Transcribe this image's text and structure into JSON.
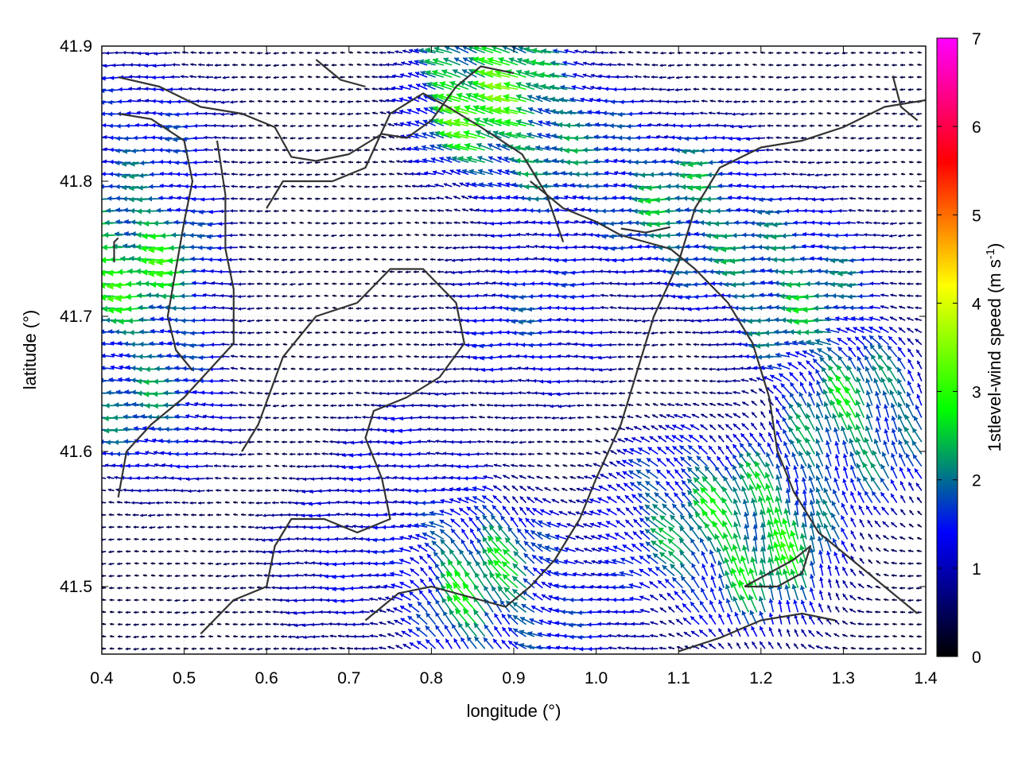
{
  "chart_data": {
    "type": "vector-field",
    "xlabel": "longitude (°)",
    "ylabel": "latitude (°)",
    "xlim": [
      0.4,
      1.4
    ],
    "ylim": [
      41.45,
      41.9
    ],
    "xticks": [
      "0.4",
      "0.5",
      "0.6",
      "0.7",
      "0.8",
      "0.9",
      "1.0",
      "1.1",
      "1.2",
      "1.3",
      "1.4"
    ],
    "yticks": [
      "41.5",
      "41.6",
      "41.7",
      "41.8",
      "41.9"
    ],
    "grid": true,
    "colorbar": {
      "label_main": "1stlevel-wind speed (m s",
      "label_sup": "-1",
      "label_end": ")",
      "range": [
        0,
        7
      ],
      "ticks": [
        "0",
        "1",
        "2",
        "3",
        "4",
        "5",
        "6",
        "7"
      ],
      "palette": [
        "#000000",
        "#0000ff",
        "#00ff00",
        "#ffff00",
        "#ff0000",
        "#ff00ff"
      ]
    },
    "vector_grid": {
      "dlon": 0.01,
      "dlat": 0.009
    },
    "wind_zones": [
      {
        "lon": 0.45,
        "lat": 41.74,
        "speed": 3.2,
        "dir_deg": 180
      },
      {
        "lon": 0.46,
        "lat": 41.64,
        "speed": 2.3,
        "dir_deg": 175
      },
      {
        "lon": 0.45,
        "lat": 41.83,
        "speed": 1.9,
        "dir_deg": 180
      },
      {
        "lon": 0.88,
        "lat": 41.86,
        "speed": 3.5,
        "dir_deg": 160
      },
      {
        "lon": 0.98,
        "lat": 41.82,
        "speed": 2.2,
        "dir_deg": 175
      },
      {
        "lon": 1.12,
        "lat": 41.78,
        "speed": 2.6,
        "dir_deg": 180
      },
      {
        "lon": 1.25,
        "lat": 41.72,
        "speed": 2.6,
        "dir_deg": 180
      },
      {
        "lon": 1.32,
        "lat": 41.62,
        "speed": 2.7,
        "dir_deg": 110
      },
      {
        "lon": 1.2,
        "lat": 41.53,
        "speed": 3.1,
        "dir_deg": 100
      },
      {
        "lon": 1.11,
        "lat": 41.55,
        "speed": 2.3,
        "dir_deg": 140
      },
      {
        "lon": 0.87,
        "lat": 41.5,
        "speed": 2.9,
        "dir_deg": 120
      },
      {
        "lon": 0.93,
        "lat": 41.7,
        "speed": 1.8,
        "dir_deg": 180
      },
      {
        "lon": 0.78,
        "lat": 41.58,
        "speed": 1.5,
        "dir_deg": 180
      },
      {
        "lon": 0.7,
        "lat": 41.52,
        "speed": 1.4,
        "dir_deg": 180
      },
      {
        "lon": 0.97,
        "lat": 41.48,
        "speed": 1.6,
        "dir_deg": 180
      }
    ],
    "contours": [
      [
        [
          0.42,
          41.877
        ],
        [
          0.47,
          41.87
        ],
        [
          0.52,
          41.855
        ],
        [
          0.57,
          41.85
        ],
        [
          0.61,
          41.84
        ],
        [
          0.63,
          41.818
        ],
        [
          0.66,
          41.815
        ],
        [
          0.7,
          41.82
        ],
        [
          0.74,
          41.835
        ],
        [
          0.77,
          41.832
        ],
        [
          0.8,
          41.845
        ],
        [
          0.83,
          41.87
        ],
        [
          0.86,
          41.885
        ],
        [
          0.9,
          41.88
        ]
      ],
      [
        [
          0.42,
          41.85
        ],
        [
          0.46,
          41.846
        ],
        [
          0.5,
          41.83
        ],
        [
          0.51,
          41.8
        ],
        [
          0.5,
          41.77
        ],
        [
          0.49,
          41.735
        ],
        [
          0.48,
          41.7
        ],
        [
          0.49,
          41.675
        ],
        [
          0.51,
          41.66
        ]
      ],
      [
        [
          0.415,
          41.74
        ],
        [
          0.415,
          41.755
        ],
        [
          0.42,
          41.758
        ]
      ],
      [
        [
          0.54,
          41.83
        ],
        [
          0.55,
          41.79
        ],
        [
          0.55,
          41.75
        ],
        [
          0.56,
          41.72
        ],
        [
          0.56,
          41.68
        ],
        [
          0.53,
          41.66
        ],
        [
          0.5,
          41.64
        ],
        [
          0.46,
          41.62
        ],
        [
          0.43,
          41.6
        ],
        [
          0.42,
          41.566
        ]
      ],
      [
        [
          0.52,
          41.465
        ],
        [
          0.56,
          41.49
        ],
        [
          0.6,
          41.5
        ],
        [
          0.61,
          41.53
        ],
        [
          0.63,
          41.55
        ],
        [
          0.67,
          41.55
        ],
        [
          0.71,
          41.54
        ],
        [
          0.75,
          41.55
        ],
        [
          0.74,
          41.58
        ],
        [
          0.72,
          41.61
        ],
        [
          0.73,
          41.63
        ],
        [
          0.77,
          41.64
        ],
        [
          0.81,
          41.655
        ],
        [
          0.84,
          41.68
        ],
        [
          0.83,
          41.71
        ],
        [
          0.79,
          41.735
        ],
        [
          0.75,
          41.735
        ],
        [
          0.71,
          41.71
        ],
        [
          0.66,
          41.7
        ],
        [
          0.62,
          41.67
        ],
        [
          0.59,
          41.62
        ],
        [
          0.57,
          41.6
        ]
      ],
      [
        [
          0.6,
          41.78
        ],
        [
          0.62,
          41.8
        ],
        [
          0.68,
          41.8
        ],
        [
          0.72,
          41.81
        ],
        [
          0.75,
          41.85
        ],
        [
          0.79,
          41.865
        ],
        [
          0.82,
          41.855
        ],
        [
          0.86,
          41.84
        ],
        [
          0.91,
          41.82
        ],
        [
          0.94,
          41.79
        ],
        [
          0.96,
          41.755
        ]
      ],
      [
        [
          0.72,
          41.475
        ],
        [
          0.76,
          41.495
        ],
        [
          0.8,
          41.5
        ],
        [
          0.83,
          41.495
        ],
        [
          0.86,
          41.49
        ],
        [
          0.89,
          41.485
        ],
        [
          0.92,
          41.5
        ],
        [
          0.95,
          41.52
        ],
        [
          0.98,
          41.55
        ],
        [
          1.0,
          41.58
        ],
        [
          1.03,
          41.62
        ],
        [
          1.05,
          41.66
        ],
        [
          1.07,
          41.7
        ],
        [
          1.1,
          41.74
        ],
        [
          1.12,
          41.78
        ],
        [
          1.15,
          41.81
        ],
        [
          1.2,
          41.825
        ],
        [
          1.25,
          41.83
        ],
        [
          1.3,
          41.84
        ],
        [
          1.35,
          41.855
        ],
        [
          1.4,
          41.86
        ]
      ],
      [
        [
          0.92,
          41.8
        ],
        [
          0.96,
          41.78
        ],
        [
          1.0,
          41.77
        ],
        [
          1.03,
          41.76
        ],
        [
          1.06,
          41.755
        ],
        [
          1.09,
          41.75
        ],
        [
          1.12,
          41.735
        ],
        [
          1.16,
          41.71
        ],
        [
          1.19,
          41.68
        ],
        [
          1.21,
          41.64
        ],
        [
          1.22,
          41.6
        ],
        [
          1.24,
          41.57
        ],
        [
          1.27,
          41.54
        ],
        [
          1.31,
          41.52
        ],
        [
          1.35,
          41.5
        ],
        [
          1.39,
          41.48
        ]
      ],
      [
        [
          1.1,
          41.452
        ],
        [
          1.15,
          41.462
        ],
        [
          1.2,
          41.475
        ],
        [
          1.25,
          41.48
        ],
        [
          1.29,
          41.475
        ]
      ],
      [
        [
          1.18,
          41.5
        ],
        [
          1.21,
          41.51
        ],
        [
          1.24,
          41.52
        ],
        [
          1.26,
          41.53
        ],
        [
          1.25,
          41.51
        ],
        [
          1.22,
          41.5
        ],
        [
          1.18,
          41.5
        ]
      ],
      [
        [
          0.66,
          41.89
        ],
        [
          0.69,
          41.875
        ],
        [
          0.72,
          41.87
        ]
      ],
      [
        [
          1.03,
          41.765
        ],
        [
          1.06,
          41.762
        ],
        [
          1.09,
          41.766
        ]
      ],
      [
        [
          1.36,
          41.878
        ],
        [
          1.37,
          41.855
        ],
        [
          1.39,
          41.845
        ]
      ]
    ]
  }
}
